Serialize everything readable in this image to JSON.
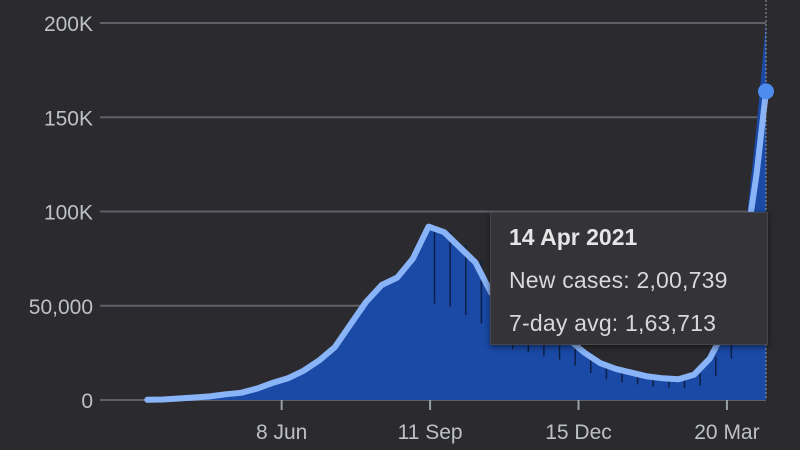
{
  "chart_data": {
    "type": "area",
    "title": "",
    "xlabel": "",
    "ylabel": "",
    "ylim": [
      0,
      200000
    ],
    "y_ticks": [
      {
        "value": 0,
        "label": "0"
      },
      {
        "value": 50000,
        "label": "50,000"
      },
      {
        "value": 100000,
        "label": "100K"
      },
      {
        "value": 150000,
        "label": "150K"
      },
      {
        "value": 200000,
        "label": "200K"
      }
    ],
    "x_ticks": [
      {
        "label": "8 Jun",
        "date": "2020-06-08"
      },
      {
        "label": "11 Sep",
        "date": "2020-09-11"
      },
      {
        "label": "15 Dec",
        "date": "2020-12-15"
      },
      {
        "label": "20 Mar",
        "date": "2021-03-20"
      }
    ],
    "grid": true,
    "colors": {
      "area": "#1a4aa6",
      "line": "#8ab4f8",
      "grid": "#5f6068",
      "marker": "#4f8cf0",
      "spikes": "#0d1f45"
    },
    "series": [
      {
        "name": "New cases",
        "x": [
          "2020-03-14",
          "2020-03-24",
          "2020-04-03",
          "2020-04-13",
          "2020-04-23",
          "2020-05-03",
          "2020-05-13",
          "2020-05-23",
          "2020-06-02",
          "2020-06-12",
          "2020-06-22",
          "2020-07-02",
          "2020-07-12",
          "2020-07-22",
          "2020-08-01",
          "2020-08-11",
          "2020-08-21",
          "2020-08-31",
          "2020-09-10",
          "2020-09-20",
          "2020-09-30",
          "2020-10-10",
          "2020-10-20",
          "2020-10-30",
          "2020-11-09",
          "2020-11-19",
          "2020-11-29",
          "2020-12-09",
          "2020-12-19",
          "2020-12-29",
          "2021-01-08",
          "2021-01-18",
          "2021-01-28",
          "2021-02-07",
          "2021-02-17",
          "2021-02-27",
          "2021-03-09",
          "2021-03-19",
          "2021-03-29",
          "2021-04-08",
          "2021-04-14"
        ],
        "values": [
          100,
          300,
          1000,
          1500,
          2000,
          3200,
          4000,
          6500,
          9500,
          12000,
          16000,
          22000,
          29000,
          42000,
          54000,
          62000,
          66000,
          76000,
          93000,
          90000,
          82000,
          74000,
          58000,
          49000,
          46000,
          42000,
          39000,
          33000,
          26000,
          20000,
          17000,
          15000,
          13000,
          12000,
          11500,
          14000,
          23000,
          40000,
          68000,
          145000,
          200739
        ]
      },
      {
        "name": "7-day avg",
        "x": [
          "2020-03-14",
          "2020-03-24",
          "2020-04-03",
          "2020-04-13",
          "2020-04-23",
          "2020-05-03",
          "2020-05-13",
          "2020-05-23",
          "2020-06-02",
          "2020-06-12",
          "2020-06-22",
          "2020-07-02",
          "2020-07-12",
          "2020-07-22",
          "2020-08-01",
          "2020-08-11",
          "2020-08-21",
          "2020-08-31",
          "2020-09-10",
          "2020-09-20",
          "2020-09-30",
          "2020-10-10",
          "2020-10-20",
          "2020-10-30",
          "2020-11-09",
          "2020-11-19",
          "2020-11-29",
          "2020-12-09",
          "2020-12-19",
          "2020-12-29",
          "2021-01-08",
          "2021-01-18",
          "2021-01-28",
          "2021-02-07",
          "2021-02-17",
          "2021-02-27",
          "2021-03-09",
          "2021-03-19",
          "2021-03-29",
          "2021-04-08",
          "2021-04-14"
        ],
        "values": [
          100,
          250,
          800,
          1300,
          1900,
          3000,
          3800,
          6000,
          9000,
          11500,
          15500,
          21000,
          28000,
          40000,
          52000,
          61000,
          65000,
          75000,
          92000,
          89000,
          81000,
          73000,
          57000,
          48000,
          45000,
          41000,
          38000,
          32000,
          25000,
          19500,
          16500,
          14500,
          12500,
          11500,
          11000,
          13500,
          22000,
          38000,
          64000,
          120000,
          163713
        ]
      }
    ],
    "tooltip": {
      "date": "14 Apr 2021",
      "new_cases_text": "New cases: 2,00,739",
      "avg_text": "7-day avg: 1,63,713"
    }
  }
}
